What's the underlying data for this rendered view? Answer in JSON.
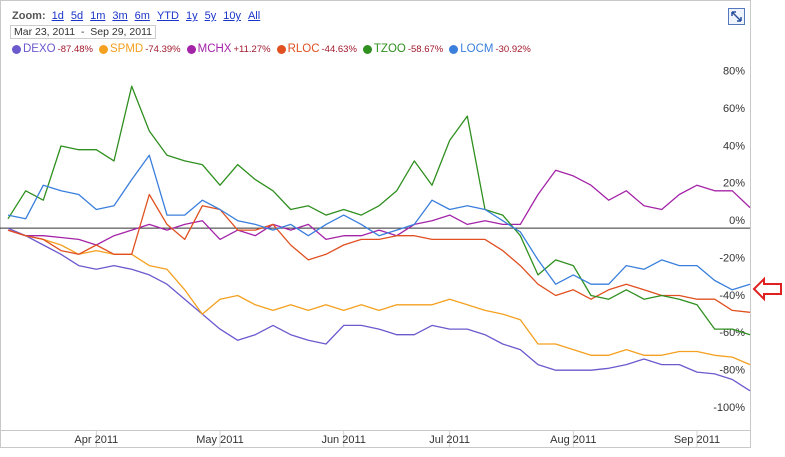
{
  "chart_data": {
    "type": "line",
    "zoom_label": "Zoom:",
    "zoom_options": [
      "1d",
      "5d",
      "1m",
      "3m",
      "6m",
      "YTD",
      "1y",
      "5y",
      "10y",
      "All"
    ],
    "range_start": "Mar 23, 2011",
    "range_separator": "-",
    "range_end": "Sep 29, 2011",
    "categories": [
      null,
      null,
      null,
      null,
      null,
      "Apr 2011",
      null,
      null,
      null,
      null,
      null,
      null,
      "May 2011",
      null,
      null,
      null,
      null,
      null,
      null,
      "Jun 2011",
      null,
      null,
      null,
      null,
      null,
      "Jul 2011",
      null,
      null,
      null,
      null,
      null,
      null,
      "Aug 2011",
      null,
      null,
      null,
      null,
      null,
      null,
      "Sep 2011",
      null,
      null,
      null
    ],
    "ylim": [
      -108,
      90
    ],
    "yticks": [
      {
        "value": 80,
        "label": "80%"
      },
      {
        "value": 60,
        "label": "60%"
      },
      {
        "value": 40,
        "label": "40%"
      },
      {
        "value": 20,
        "label": "20%"
      },
      {
        "value": 0,
        "label": "0%"
      },
      {
        "value": -20,
        "label": "-20%"
      },
      {
        "value": -40,
        "label": "-40%"
      },
      {
        "value": -60,
        "label": "-60%"
      },
      {
        "value": -80,
        "label": "-80%"
      },
      {
        "value": -100,
        "label": "-100%"
      }
    ],
    "grid": false,
    "series": [
      {
        "name": "DEXO",
        "change": "-87.48%",
        "color": "#6a5acd",
        "values": [
          0,
          -4,
          -9,
          -14,
          -20,
          -22,
          -20,
          -22,
          -25,
          -30,
          -38,
          -46,
          -54,
          -60,
          -57,
          -52,
          -57,
          -60,
          -62,
          -52,
          -52,
          -54,
          -57,
          -57,
          -52,
          -54,
          -54,
          -57,
          -62,
          -65,
          -73,
          -76,
          -76,
          -76,
          -75,
          -73,
          -70,
          -73,
          -73,
          -77,
          -78,
          -81,
          -87
        ]
      },
      {
        "name": "SPMD",
        "change": "-74.39%",
        "color": "#f4a020",
        "values": [
          -1,
          -4,
          -6,
          -9,
          -14,
          -12,
          -14,
          -14,
          -20,
          -22,
          -33,
          -46,
          -38,
          -36,
          -41,
          -44,
          -41,
          -44,
          -41,
          -44,
          -41,
          -44,
          -41,
          -41,
          -41,
          -38,
          -41,
          -44,
          -46,
          -49,
          -62,
          -62,
          -65,
          -68,
          -68,
          -65,
          -68,
          -68,
          -66,
          -66,
          -68,
          -69,
          -73
        ]
      },
      {
        "name": "MCHX",
        "change": "+11.27%",
        "color": "#a424a8",
        "values": [
          -1,
          -4,
          -4,
          -5,
          -6,
          -9,
          -4,
          -1,
          2,
          -1,
          2,
          4,
          -6,
          -1,
          -4,
          2,
          -1,
          2,
          -6,
          -4,
          -4,
          -1,
          -4,
          2,
          4,
          7,
          2,
          4,
          2,
          2,
          18,
          31,
          28,
          23,
          15,
          20,
          12,
          10,
          18,
          23,
          20,
          20,
          11
        ]
      },
      {
        "name": "RLOC",
        "change": "-44.63%",
        "color": "#e05020",
        "values": [
          -1,
          -4,
          -6,
          -12,
          -14,
          -9,
          -14,
          -14,
          18,
          2,
          -6,
          12,
          10,
          -1,
          -1,
          2,
          -9,
          -17,
          -14,
          -9,
          -6,
          -6,
          -4,
          -4,
          -6,
          -6,
          -6,
          -6,
          -12,
          -20,
          -30,
          -36,
          -33,
          -38,
          -33,
          -30,
          -33,
          -36,
          -36,
          -38,
          -38,
          -44,
          -45
        ]
      },
      {
        "name": "TZOO",
        "change": "-58.67%",
        "color": "#2f8f1f",
        "values": [
          5,
          20,
          15,
          44,
          42,
          42,
          36,
          76,
          52,
          39,
          36,
          34,
          23,
          34,
          26,
          20,
          10,
          12,
          7,
          10,
          7,
          12,
          20,
          36,
          23,
          47,
          60,
          10,
          7,
          -4,
          -25,
          -17,
          -20,
          -36,
          -38,
          -33,
          -38,
          -36,
          -38,
          -41,
          -54,
          -54,
          -57
        ]
      },
      {
        "name": "LOCM",
        "change": "-30.92%",
        "color": "#3a7fdc",
        "values": [
          7,
          5,
          23,
          20,
          18,
          10,
          12,
          26,
          39,
          7,
          7,
          15,
          10,
          4,
          2,
          -1,
          2,
          -4,
          2,
          7,
          2,
          -4,
          -1,
          2,
          15,
          10,
          12,
          10,
          4,
          -2,
          -17,
          -30,
          -25,
          -30,
          -30,
          -20,
          -22,
          -17,
          -20,
          -20,
          -28,
          -33,
          -30
        ]
      }
    ]
  }
}
